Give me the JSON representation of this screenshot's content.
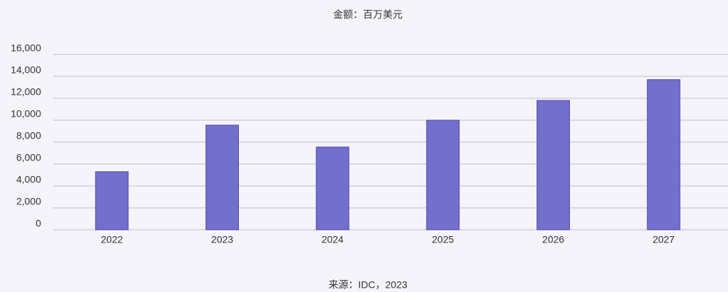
{
  "chart_data": {
    "type": "bar",
    "title": "金额：百万美元",
    "source": "来源：IDC，2023",
    "categories": [
      "2022",
      "2023",
      "2024",
      "2025",
      "2026",
      "2027"
    ],
    "values": [
      5300,
      9550,
      7550,
      10000,
      11800,
      13700
    ],
    "color": "#7370cc",
    "ylim": [
      0,
      16000
    ],
    "yticks": [
      0,
      {
        "value": 2000,
        "label": "2,000"
      },
      {
        "value": 4000,
        "label": "4,000"
      },
      {
        "value": 6000,
        "label": "6,000"
      },
      {
        "value": 8000,
        "label": "8,000"
      },
      {
        "value": 10000,
        "label": "10,000"
      },
      {
        "value": 12000,
        "label": "12,000"
      },
      {
        "value": 14000,
        "label": "14,000"
      },
      {
        "value": 16000,
        "label": "16,000"
      }
    ],
    "grid": true
  }
}
